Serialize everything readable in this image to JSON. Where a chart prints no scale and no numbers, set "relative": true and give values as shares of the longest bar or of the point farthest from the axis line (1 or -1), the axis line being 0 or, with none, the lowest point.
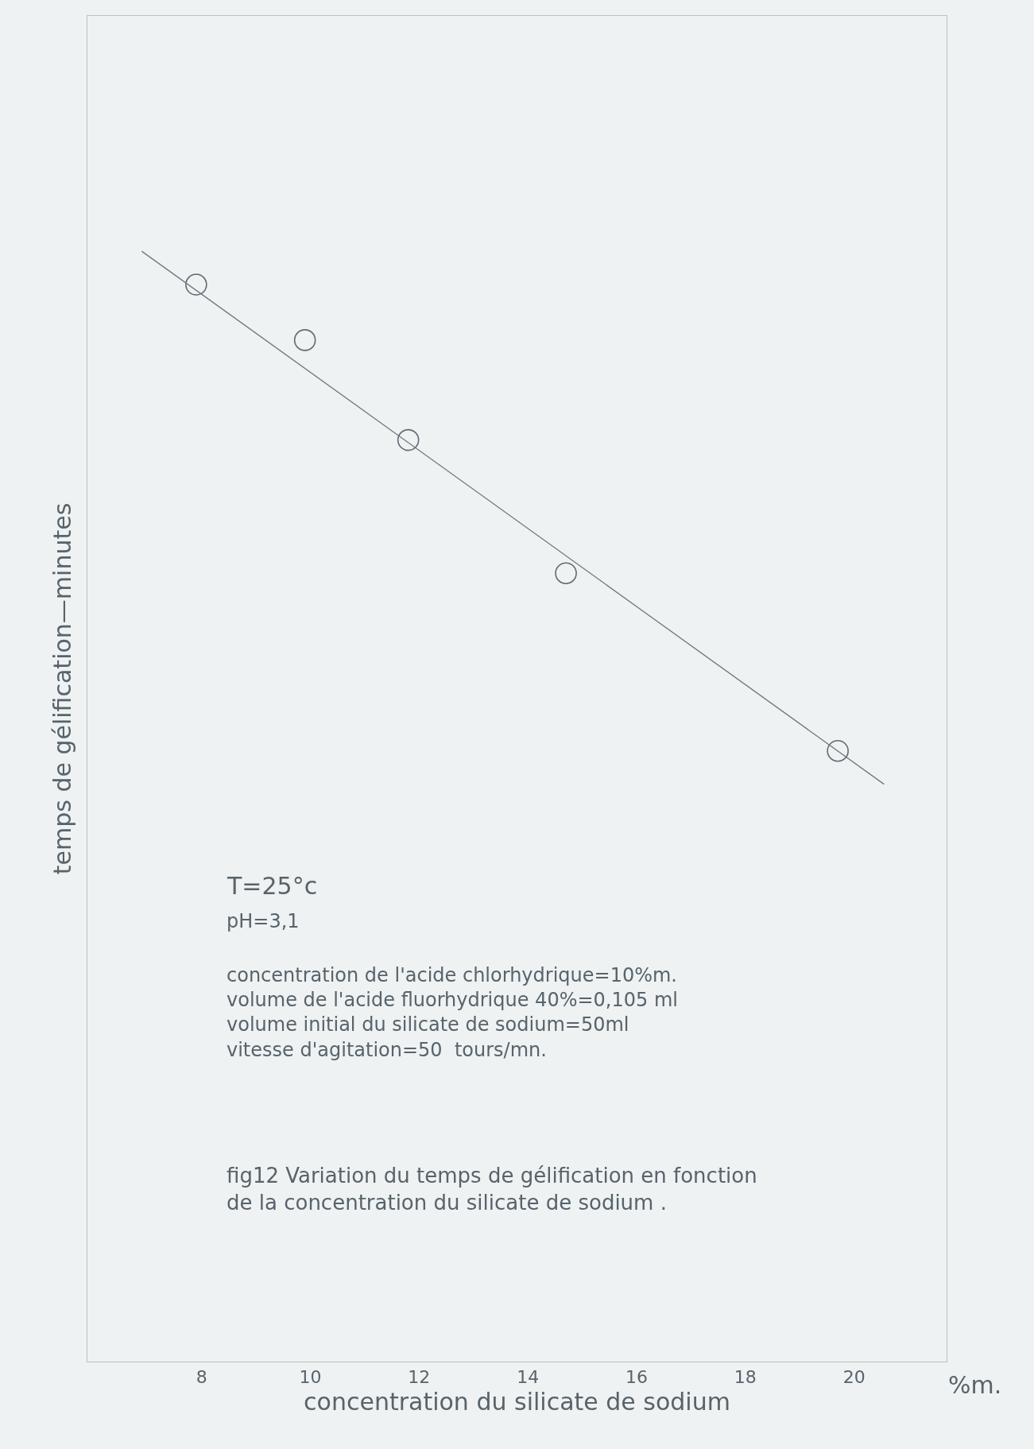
{
  "chart_data": {
    "type": "scatter",
    "relative": true,
    "xlabel": "concentration du silicate de sodium",
    "ylabel": "temps de gélification—minutes",
    "xlim": [
      5.9,
      21.7
    ],
    "xticks": [
      8,
      10,
      12,
      14,
      16,
      18,
      20
    ],
    "marker": "circle",
    "series": [
      {
        "color": "#5f6b74",
        "x": [
          7.9,
          9.9,
          11.8,
          14.7,
          19.7
        ],
        "values": [
          0.97,
          0.92,
          0.83,
          0.71,
          0.55
        ]
      },
      {
        "type": "line",
        "color": "#6d7880",
        "marker": "none",
        "x": [
          6.9,
          20.55
        ],
        "values": [
          1,
          0.52
        ]
      }
    ],
    "annotations": [
      "%m.",
      "T=25°c",
      "pH=3,1",
      "concentration de l'acide chlorhydrique=10%m.\nvolume de l'acide fluorhydrique 40%=0,105 ml\nvolume initial du silicate de sodium=50ml\nvitesse d'agitation=50  tours/mn.",
      "fig12 Variation du temps de gélification en fonction\nde la concentration du silicate de sodium ."
    ]
  }
}
